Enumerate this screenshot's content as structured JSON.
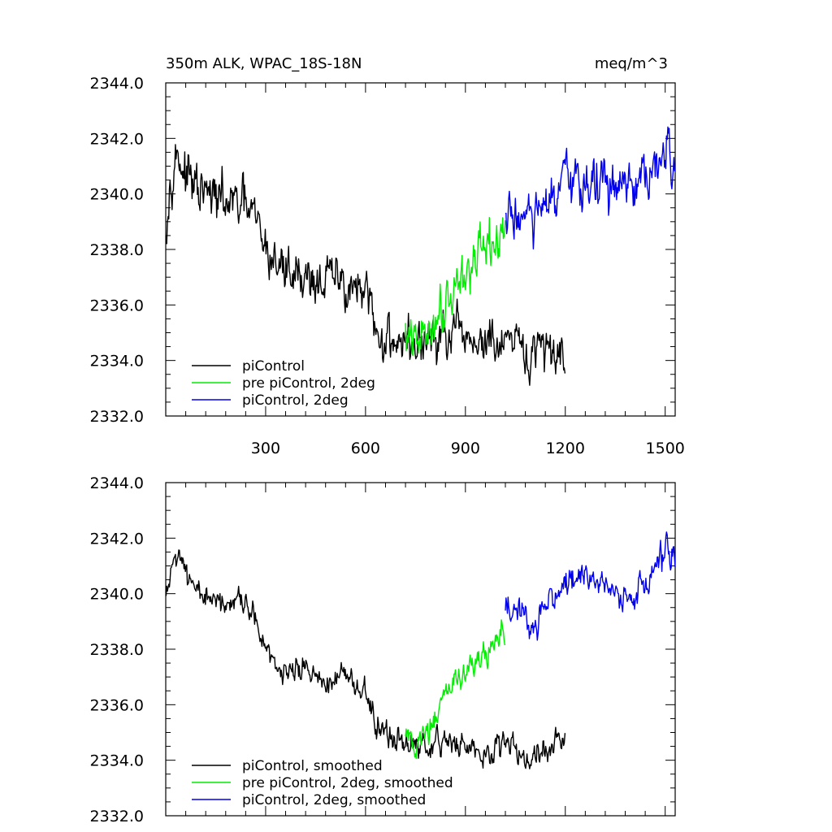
{
  "header": {
    "left_title": "350m ALK, WPAC_18S-18N",
    "right_title": "meq/m^3"
  },
  "chart_data": [
    {
      "type": "line",
      "title": "350m ALK, WPAC_18S-18N",
      "units": "meq/m^3",
      "xlim": [
        0,
        1530
      ],
      "ylim": [
        2332.0,
        2344.0
      ],
      "x_ticks": [
        300,
        600,
        900,
        1200,
        1500
      ],
      "y_ticks": [
        2332.0,
        2334.0,
        2336.0,
        2338.0,
        2340.0,
        2342.0,
        2344.0
      ],
      "x_tick_labels": [
        "300",
        "600",
        "900",
        "1200",
        "1500"
      ],
      "y_tick_labels": [
        "2332.0",
        "2334.0",
        "2336.0",
        "2338.0",
        "2340.0",
        "2342.0",
        "2344.0"
      ],
      "grid": false,
      "legend_position": "bottom-left",
      "series": [
        {
          "name": "piControl",
          "color": "#000000",
          "x_range": [
            1,
            1200
          ],
          "anchors": [
            [
              1,
              2339.2
            ],
            [
              20,
              2341.2
            ],
            [
              40,
              2341.4
            ],
            [
              60,
              2340.6
            ],
            [
              100,
              2340.0
            ],
            [
              150,
              2339.8
            ],
            [
              200,
              2339.6
            ],
            [
              240,
              2339.5
            ],
            [
              270,
              2339.0
            ],
            [
              300,
              2338.0
            ],
            [
              350,
              2337.3
            ],
            [
              400,
              2337.2
            ],
            [
              450,
              2336.9
            ],
            [
              500,
              2336.9
            ],
            [
              550,
              2336.8
            ],
            [
              600,
              2336.2
            ],
            [
              640,
              2334.8
            ],
            [
              700,
              2334.8
            ],
            [
              750,
              2334.5
            ],
            [
              800,
              2334.7
            ],
            [
              900,
              2334.8
            ],
            [
              1000,
              2334.5
            ],
            [
              1100,
              2334.2
            ],
            [
              1200,
              2334.5
            ]
          ],
          "noise": 0.55
        },
        {
          "name": "pre piControl, 2deg",
          "color": "#00ee00",
          "x_range": [
            720,
            1020
          ],
          "anchors": [
            [
              720,
              2334.8
            ],
            [
              750,
              2334.5
            ],
            [
              800,
              2335.3
            ],
            [
              850,
              2336.5
            ],
            [
              900,
              2337.2
            ],
            [
              950,
              2337.7
            ],
            [
              1000,
              2338.3
            ],
            [
              1020,
              2338.7
            ]
          ],
          "noise": 0.55
        },
        {
          "name": "piControl, 2deg",
          "color": "#0000ee",
          "x_range": [
            1020,
            1530
          ],
          "anchors": [
            [
              1020,
              2339.0
            ],
            [
              1060,
              2339.3
            ],
            [
              1100,
              2339.0
            ],
            [
              1150,
              2339.5
            ],
            [
              1200,
              2340.2
            ],
            [
              1250,
              2340.5
            ],
            [
              1300,
              2340.4
            ],
            [
              1350,
              2340.2
            ],
            [
              1400,
              2340.0
            ],
            [
              1450,
              2340.4
            ],
            [
              1500,
              2341.4
            ],
            [
              1530,
              2341.0
            ]
          ],
          "noise": 0.6
        }
      ]
    },
    {
      "type": "line",
      "xlim": [
        0,
        1530
      ],
      "ylim": [
        2332.0,
        2344.0
      ],
      "x_ticks": [
        300,
        600,
        900,
        1200,
        1500
      ],
      "y_ticks": [
        2332.0,
        2334.0,
        2336.0,
        2338.0,
        2340.0,
        2342.0,
        2344.0
      ],
      "y_tick_labels": [
        "2332.0",
        "2334.0",
        "2336.0",
        "2338.0",
        "2340.0",
        "2342.0",
        "2344.0"
      ],
      "grid": false,
      "legend_position": "bottom-left",
      "series": [
        {
          "name": "piControl, smoothed",
          "color": "#000000",
          "x_range": [
            1,
            1200
          ],
          "anchors": [
            [
              1,
              2339.8
            ],
            [
              20,
              2341.2
            ],
            [
              40,
              2341.6
            ],
            [
              60,
              2340.5
            ],
            [
              100,
              2339.8
            ],
            [
              150,
              2339.7
            ],
            [
              200,
              2339.6
            ],
            [
              240,
              2339.4
            ],
            [
              270,
              2338.8
            ],
            [
              300,
              2338.0
            ],
            [
              350,
              2337.2
            ],
            [
              400,
              2337.3
            ],
            [
              450,
              2336.9
            ],
            [
              500,
              2336.9
            ],
            [
              550,
              2336.8
            ],
            [
              600,
              2336.3
            ],
            [
              640,
              2335.0
            ],
            [
              700,
              2334.7
            ],
            [
              750,
              2334.4
            ],
            [
              800,
              2334.6
            ],
            [
              900,
              2334.6
            ],
            [
              1000,
              2334.5
            ],
            [
              1100,
              2334.2
            ],
            [
              1200,
              2334.8
            ]
          ],
          "noise": 0.3
        },
        {
          "name": "pre piControl, 2deg, smoothed",
          "color": "#00ee00",
          "x_range": [
            720,
            1020
          ],
          "anchors": [
            [
              720,
              2334.9
            ],
            [
              750,
              2334.4
            ],
            [
              800,
              2335.3
            ],
            [
              850,
              2336.6
            ],
            [
              900,
              2337.2
            ],
            [
              950,
              2337.7
            ],
            [
              1000,
              2338.3
            ],
            [
              1020,
              2338.7
            ]
          ],
          "noise": 0.28
        },
        {
          "name": "piControl, 2deg, smoothed",
          "color": "#0000ee",
          "x_range": [
            1020,
            1530
          ],
          "anchors": [
            [
              1020,
              2339.6
            ],
            [
              1060,
              2339.4
            ],
            [
              1100,
              2338.9
            ],
            [
              1150,
              2339.5
            ],
            [
              1200,
              2340.3
            ],
            [
              1250,
              2340.7
            ],
            [
              1300,
              2340.5
            ],
            [
              1350,
              2339.9
            ],
            [
              1400,
              2339.8
            ],
            [
              1450,
              2340.4
            ],
            [
              1500,
              2341.5
            ],
            [
              1530,
              2341.2
            ]
          ],
          "noise": 0.32
        }
      ]
    }
  ]
}
